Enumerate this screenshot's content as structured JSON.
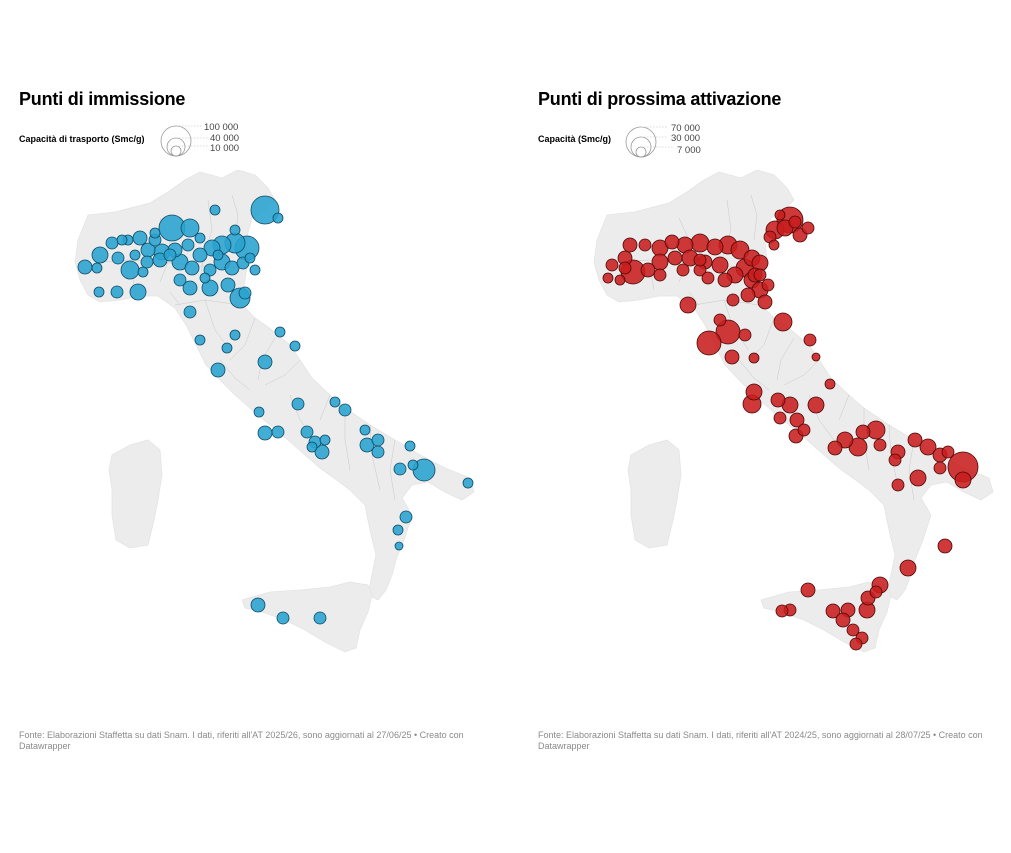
{
  "maps": [
    {
      "title": "Punti di immissione",
      "legend_title": "Capacità di trasporto (Smc/g)",
      "legend_values": [
        "100 000",
        "40 000",
        "10 000"
      ],
      "marker_color": "#29a3cf",
      "marker_stroke": "#0d4a66",
      "source": "Fonte: Elaborazioni Staffetta su dati Snam. I dati, riferiti all'AT 2025/26, sono aggiornati al 27/06/25 • Creato con Datawrapper"
    },
    {
      "title": "Punti di prossima attivazione",
      "legend_title": "Capacità (Smc/g)",
      "legend_values": [
        "70 000",
        "30 000",
        "7 000"
      ],
      "marker_color": "#c81e1e",
      "marker_stroke": "#4a0808",
      "source": "Fonte: Elaborazioni Staffetta su dati Snam. I dati, riferiti all'AT 2024/25, sono aggiornati al 28/07/25 • Creato con Datawrapper"
    }
  ],
  "map_base_color": "#ececec",
  "map_border_color": "#c8c8c8"
}
